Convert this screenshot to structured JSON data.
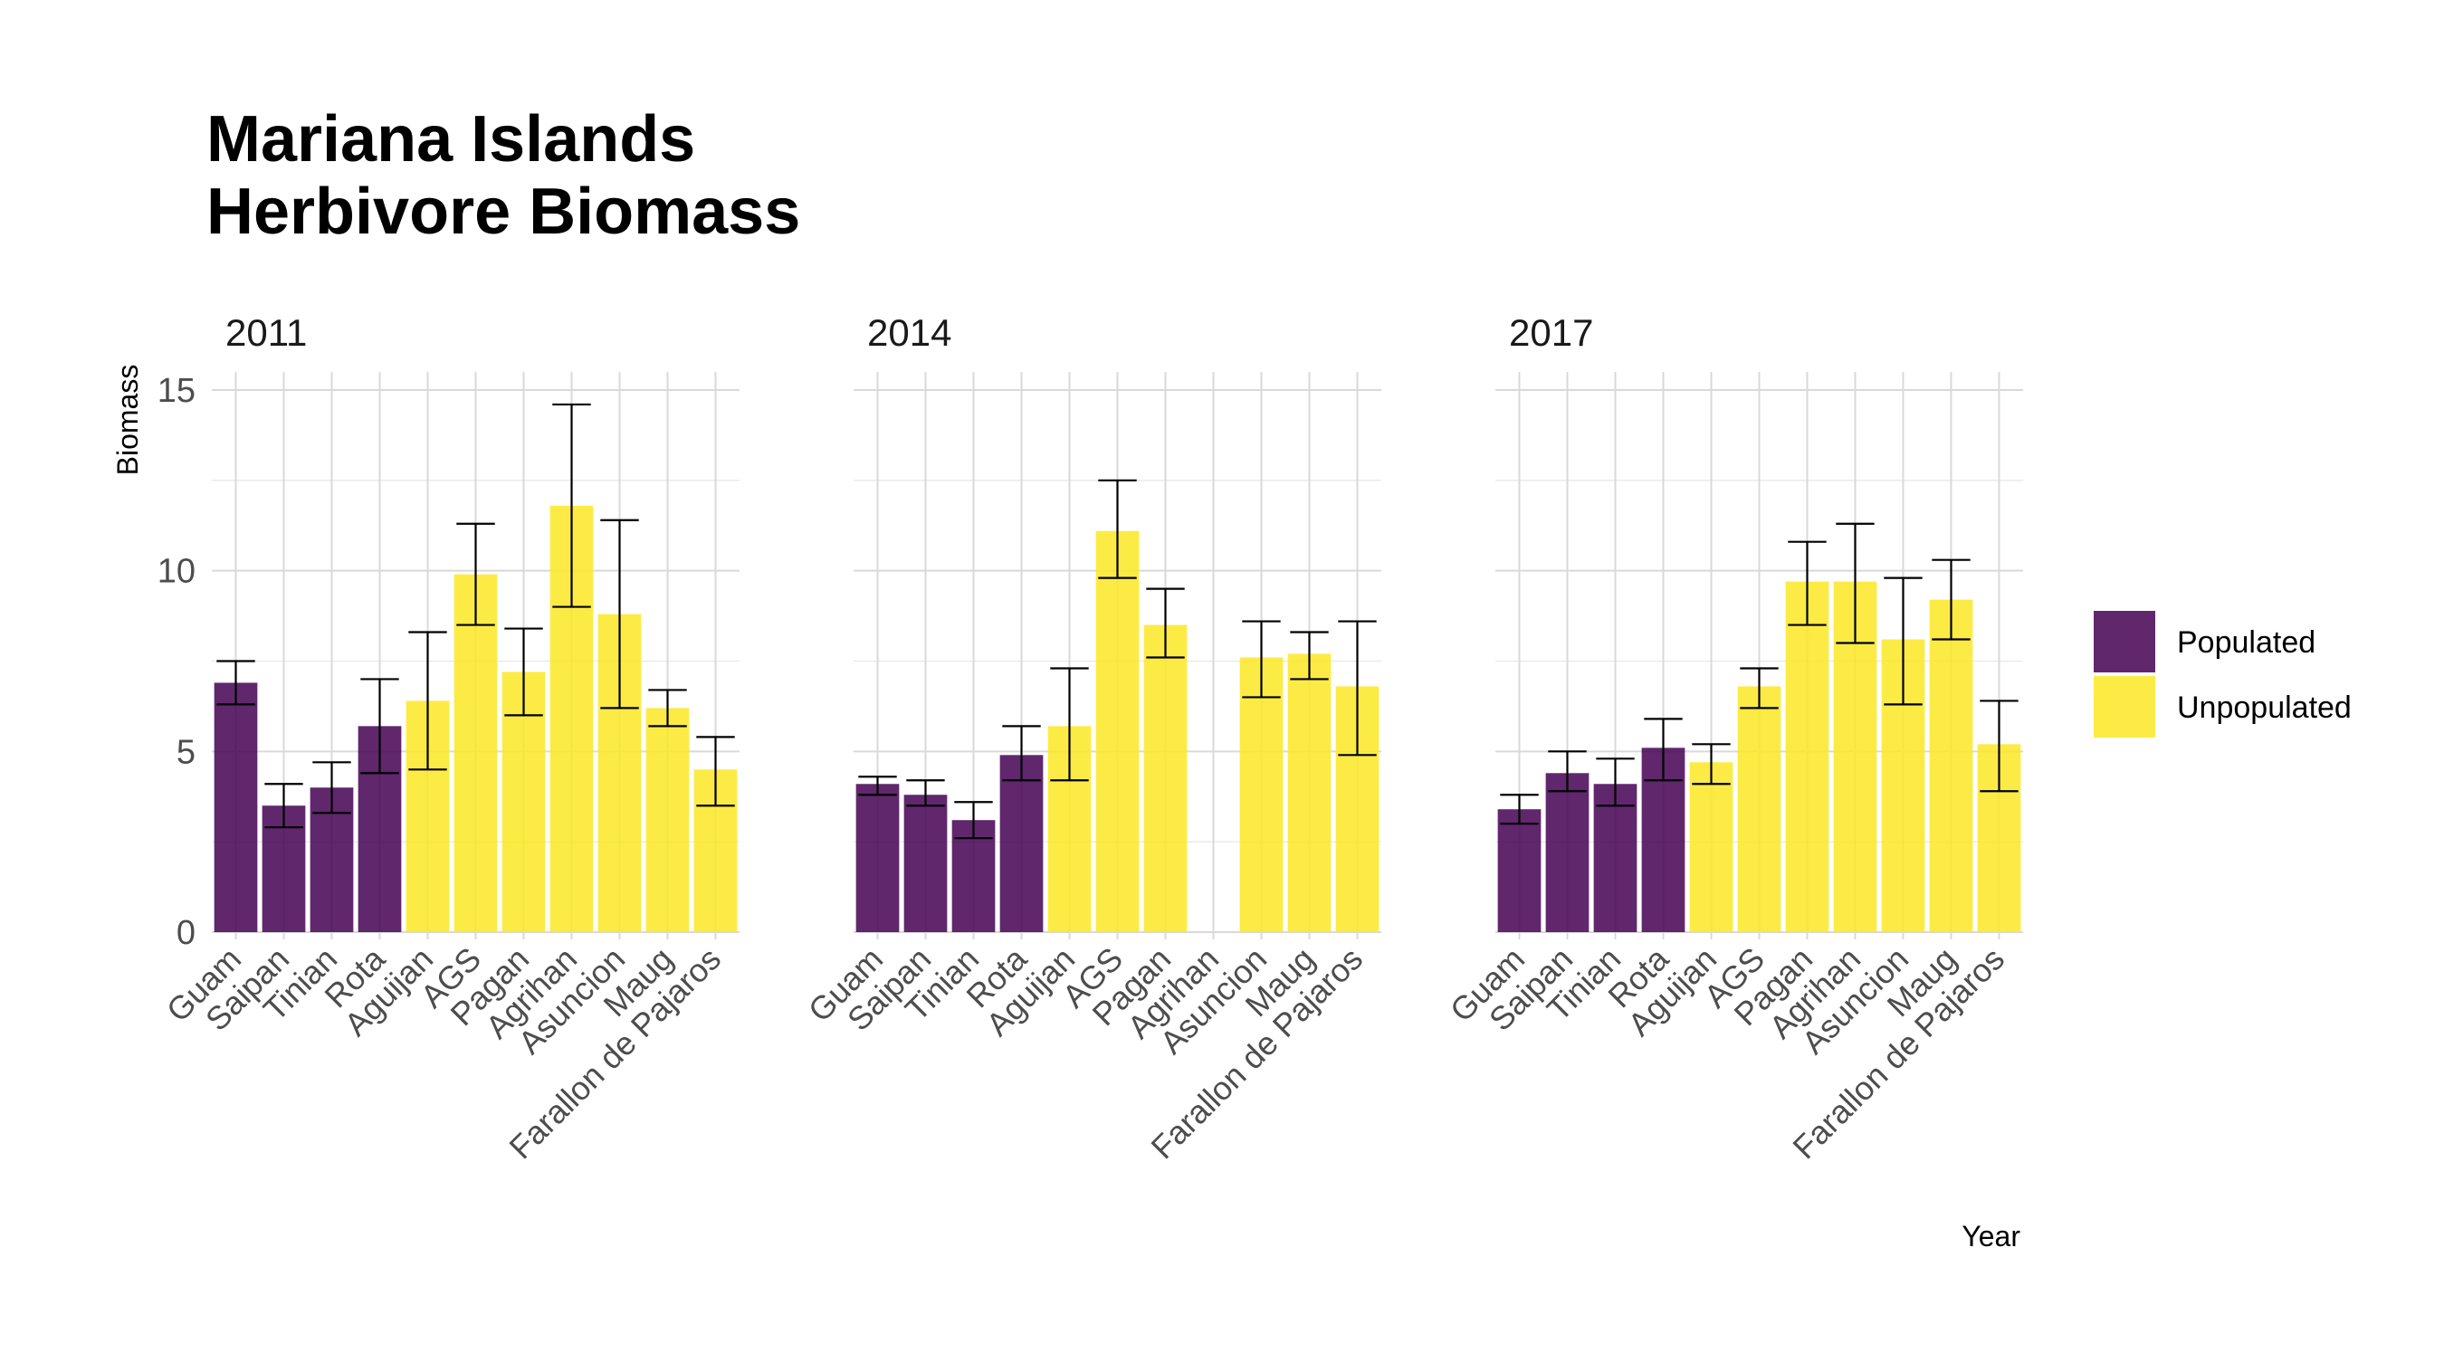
{
  "chart_data": {
    "type": "bar",
    "title": [
      "Mariana Islands",
      "Herbivore Biomass"
    ],
    "ylabel": "Biomass",
    "xlabel": "Year",
    "ylim": [
      0,
      15.5
    ],
    "yticks": [
      0,
      5,
      10,
      15
    ],
    "grid": true,
    "legend_position": "right",
    "legend": [
      {
        "name": "Populated",
        "color": "#440154"
      },
      {
        "name": "Unpopulated",
        "color": "#FDE725"
      }
    ],
    "categories": [
      "Guam",
      "Saipan",
      "Tinian",
      "Rota",
      "Aguijan",
      "AGS",
      "Pagan",
      "Agrihan",
      "Asuncion",
      "Maug",
      "Farallon de Pajaros"
    ],
    "category_group": [
      "Populated",
      "Populated",
      "Populated",
      "Populated",
      "Unpopulated",
      "Unpopulated",
      "Unpopulated",
      "Unpopulated",
      "Unpopulated",
      "Unpopulated",
      "Unpopulated"
    ],
    "facets": [
      {
        "label": "2011",
        "values": [
          6.9,
          3.5,
          4.0,
          5.7,
          6.4,
          9.9,
          7.2,
          11.8,
          8.8,
          6.2,
          4.5
        ],
        "err_low": [
          6.3,
          2.9,
          3.3,
          4.4,
          4.5,
          8.5,
          6.0,
          9.0,
          6.2,
          5.7,
          3.5
        ],
        "err_high": [
          7.5,
          4.1,
          4.7,
          7.0,
          8.3,
          11.3,
          8.4,
          14.6,
          11.4,
          6.7,
          5.4
        ]
      },
      {
        "label": "2014",
        "values": [
          4.1,
          3.8,
          3.1,
          4.9,
          5.7,
          11.1,
          8.5,
          null,
          7.6,
          7.7,
          6.8
        ],
        "err_low": [
          3.8,
          3.5,
          2.6,
          4.2,
          4.2,
          9.8,
          7.6,
          null,
          6.5,
          7.0,
          4.9
        ],
        "err_high": [
          4.3,
          4.2,
          3.6,
          5.7,
          7.3,
          12.5,
          9.5,
          null,
          8.6,
          8.3,
          8.6
        ]
      },
      {
        "label": "2017",
        "values": [
          3.4,
          4.4,
          4.1,
          5.1,
          4.7,
          6.8,
          9.7,
          9.7,
          8.1,
          9.2,
          5.2
        ],
        "err_low": [
          3.0,
          3.9,
          3.5,
          4.2,
          4.1,
          6.2,
          8.5,
          8.0,
          6.3,
          8.1,
          3.9
        ],
        "err_high": [
          3.8,
          5.0,
          4.8,
          5.9,
          5.2,
          7.3,
          10.8,
          11.3,
          9.8,
          10.3,
          6.4
        ]
      }
    ]
  }
}
